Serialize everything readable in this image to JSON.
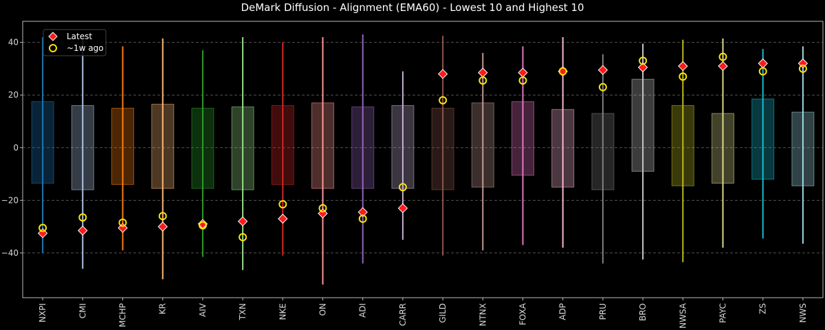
{
  "chart_data": {
    "type": "box-range",
    "title": "DeMark Diffusion - Alignment (EMA60) - Lowest 10 and Highest 10",
    "xlabel": "",
    "ylabel": "",
    "ylim": [
      -57,
      48
    ],
    "yticks": [
      -40,
      -20,
      0,
      20,
      40
    ],
    "grid": "y-dashed",
    "legend_placement": "top-left",
    "legend": [
      {
        "name": "Latest",
        "marker": "diamond",
        "color": "#ff1a1a"
      },
      {
        "name": "~1w ago",
        "marker": "circle",
        "color": "#ffe600"
      }
    ],
    "categories": [
      "NXPI",
      "CMI",
      "MCHP",
      "KR",
      "AIV",
      "TXN",
      "NKE",
      "ON",
      "ADI",
      "CARR",
      "GILD",
      "NTNX",
      "FOXA",
      "ADP",
      "PRU",
      "BRO",
      "NWSA",
      "PAYC",
      "ZS",
      "NWS"
    ],
    "colors": [
      "#1f77b4",
      "#aec7e8",
      "#ff7f0e",
      "#ffbb78",
      "#2ca02c",
      "#98df8a",
      "#d62728",
      "#ff9896",
      "#9467bd",
      "#c5b0d5",
      "#8c564b",
      "#c49c94",
      "#e377c2",
      "#f7b6d2",
      "#7f7f7f",
      "#c7c7c7",
      "#bcbd22",
      "#dbdb8d",
      "#17becf",
      "#9edae5"
    ],
    "ranges": [
      {
        "min": -40,
        "max": 42,
        "q1": -13.5,
        "q3": 17.5
      },
      {
        "min": -46,
        "max": 41,
        "q1": -16,
        "q3": 16
      },
      {
        "min": -39,
        "max": 38.5,
        "q1": -14,
        "q3": 15
      },
      {
        "min": -50,
        "max": 41.5,
        "q1": -15.5,
        "q3": 16.5
      },
      {
        "min": -41.5,
        "max": 37,
        "q1": -15.5,
        "q3": 15
      },
      {
        "min": -46.5,
        "max": 42,
        "q1": -16,
        "q3": 15.5
      },
      {
        "min": -41,
        "max": 40,
        "q1": -14,
        "q3": 16
      },
      {
        "min": -52,
        "max": 42,
        "q1": -15.5,
        "q3": 17
      },
      {
        "min": -44,
        "max": 43,
        "q1": -15.5,
        "q3": 15.5
      },
      {
        "min": -35,
        "max": 29,
        "q1": -15.5,
        "q3": 16
      },
      {
        "min": -41,
        "max": 42.5,
        "q1": -16,
        "q3": 15
      },
      {
        "min": -39,
        "max": 36,
        "q1": -15,
        "q3": 17
      },
      {
        "min": -37,
        "max": 38.5,
        "q1": -10.5,
        "q3": 17.5
      },
      {
        "min": -38,
        "max": 42,
        "q1": -15,
        "q3": 14.5
      },
      {
        "min": -44,
        "max": 35.5,
        "q1": -16,
        "q3": 13
      },
      {
        "min": -42.5,
        "max": 39.5,
        "q1": -9,
        "q3": 26
      },
      {
        "min": -43.5,
        "max": 41,
        "q1": -14.5,
        "q3": 16
      },
      {
        "min": -38,
        "max": 41.5,
        "q1": -13.5,
        "q3": 13
      },
      {
        "min": -34.5,
        "max": 37.5,
        "q1": -12,
        "q3": 18.5
      },
      {
        "min": -36.5,
        "max": 38.5,
        "q1": -14.5,
        "q3": 13.5
      }
    ],
    "series": [
      {
        "name": "Latest",
        "values": [
          -32.5,
          -31.5,
          -30.5,
          -30,
          -29,
          -28,
          -27,
          -25,
          -24.5,
          -23,
          28,
          28.5,
          28.5,
          29,
          29.5,
          30.5,
          31,
          31,
          32,
          32
        ]
      },
      {
        "name": "~1w ago",
        "values": [
          -30.5,
          -26.5,
          -28.5,
          -26,
          -29.5,
          -34,
          -21.5,
          -23,
          -27,
          -15,
          18,
          25.5,
          25.5,
          29,
          23,
          33,
          27,
          34.5,
          29,
          30
        ]
      }
    ]
  }
}
